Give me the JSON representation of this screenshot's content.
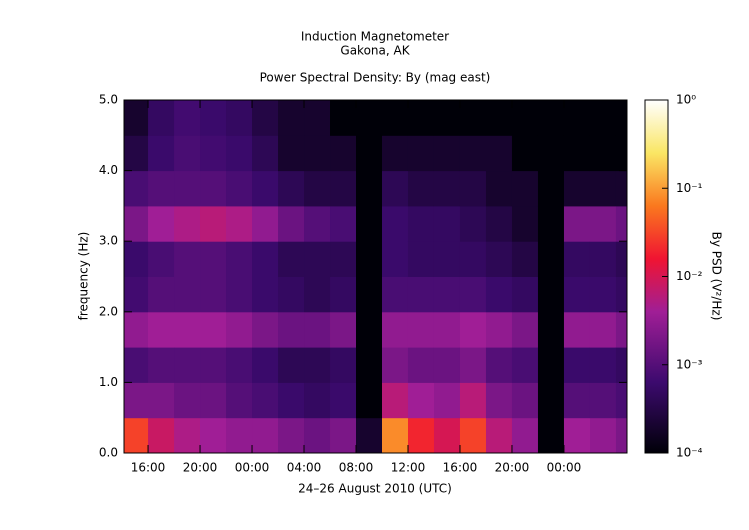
{
  "chart_data": {
    "type": "heatmap",
    "title": "Induction Magnetometer",
    "subtitle": "Gakona, AK",
    "plot_title": "Power Spectral Density: By (mag east)",
    "xlabel": "24–26 August 2010 (UTC)",
    "ylabel": "frequency (Hz)",
    "colorbar_label": "By PSD (V²/Hz)",
    "xlim": [
      14.15,
      52.85
    ],
    "xticks": [
      {
        "value": 16,
        "label": "16:00"
      },
      {
        "value": 20,
        "label": "20:00"
      },
      {
        "value": 24,
        "label": "00:00"
      },
      {
        "value": 28,
        "label": "04:00"
      },
      {
        "value": 32,
        "label": "08:00"
      },
      {
        "value": 36,
        "label": "12:00"
      },
      {
        "value": 40,
        "label": "16:00"
      },
      {
        "value": 44,
        "label": "20:00"
      },
      {
        "value": 48,
        "label": "00:00"
      }
    ],
    "ylim": [
      0,
      5
    ],
    "yticks": [
      {
        "value": 0,
        "label": "0.0"
      },
      {
        "value": 1,
        "label": "1.0"
      },
      {
        "value": 2,
        "label": "2.0"
      },
      {
        "value": 3,
        "label": "3.0"
      },
      {
        "value": 4,
        "label": "4.0"
      },
      {
        "value": 5,
        "label": "5.0"
      }
    ],
    "zlim": [
      0.0001,
      1
    ],
    "zscale": "log",
    "zticks": [
      {
        "value": 1,
        "label": "10⁰"
      },
      {
        "value": 0.1,
        "label": "10⁻¹"
      },
      {
        "value": 0.01,
        "label": "10⁻²"
      },
      {
        "value": 0.001,
        "label": "10⁻³"
      },
      {
        "value": 0.0001,
        "label": "10⁻⁴"
      }
    ],
    "x": [
      15,
      17,
      19,
      21,
      23,
      25,
      27,
      29,
      31,
      33,
      35,
      37,
      39,
      41,
      43,
      45,
      47,
      49,
      51,
      53
    ],
    "y": [
      0.25,
      0.75,
      1.25,
      1.75,
      2.25,
      2.75,
      3.25,
      3.75,
      4.25,
      4.75
    ],
    "z": [
      [
        0.03,
        0.002,
        0.0008,
        0.003,
        0.0007,
        0.0006,
        0.002,
        0.0008,
        0.0003,
        0.0002
      ],
      [
        0.008,
        0.002,
        0.001,
        0.004,
        0.001,
        0.0008,
        0.004,
        0.001,
        0.0006,
        0.0005
      ],
      [
        0.005,
        0.0015,
        0.001,
        0.004,
        0.001,
        0.001,
        0.005,
        0.001,
        0.0008,
        0.0007
      ],
      [
        0.004,
        0.0015,
        0.001,
        0.004,
        0.001,
        0.001,
        0.006,
        0.001,
        0.0007,
        0.0006
      ],
      [
        0.003,
        0.001,
        0.0008,
        0.003,
        0.0008,
        0.0008,
        0.005,
        0.0008,
        0.0006,
        0.0005
      ],
      [
        0.003,
        0.0008,
        0.0006,
        0.002,
        0.0006,
        0.0006,
        0.003,
        0.0006,
        0.0004,
        0.0003
      ],
      [
        0.002,
        0.0006,
        0.0004,
        0.0015,
        0.0005,
        0.0004,
        0.0015,
        0.0004,
        0.0002,
        0.0002
      ],
      [
        0.0015,
        0.0005,
        0.0004,
        0.0015,
        0.0004,
        0.0004,
        0.001,
        0.0003,
        0.0002,
        0.0002
      ],
      [
        0.002,
        0.0006,
        0.0005,
        0.002,
        0.0005,
        0.0004,
        0.0008,
        0.0003,
        0.0002,
        0.0001
      ],
      [
        0.0002,
        0.0001,
        0.0001,
        0.0001,
        0.0001,
        0.0001,
        0.0001,
        0.0001,
        0.0001,
        0.0001
      ],
      [
        0.08,
        0.006,
        0.002,
        0.003,
        0.0008,
        0.0006,
        0.0006,
        0.0004,
        0.0002,
        0.0001
      ],
      [
        0.02,
        0.004,
        0.0015,
        0.003,
        0.0008,
        0.0005,
        0.0005,
        0.0003,
        0.0002,
        0.0001
      ],
      [
        0.01,
        0.003,
        0.0015,
        0.003,
        0.0008,
        0.0005,
        0.0005,
        0.0003,
        0.0002,
        0.0001
      ],
      [
        0.03,
        0.006,
        0.002,
        0.004,
        0.0008,
        0.0005,
        0.0004,
        0.0003,
        0.0002,
        0.0001
      ],
      [
        0.006,
        0.002,
        0.001,
        0.003,
        0.0006,
        0.0004,
        0.0003,
        0.0002,
        0.0002,
        0.0001
      ],
      [
        0.003,
        0.0015,
        0.0008,
        0.002,
        0.0005,
        0.0003,
        0.0002,
        0.0002,
        0.0001,
        0.0001
      ],
      [
        0.0001,
        0.0001,
        0.0001,
        0.0001,
        0.0001,
        0.0001,
        0.0001,
        0.0001,
        0.0001,
        0.0001
      ],
      [
        0.004,
        0.001,
        0.0006,
        0.003,
        0.0006,
        0.0005,
        0.002,
        0.0002,
        0.0001,
        0.0001
      ],
      [
        0.003,
        0.001,
        0.0006,
        0.003,
        0.0006,
        0.0005,
        0.002,
        0.0002,
        0.0001,
        0.0001
      ],
      [
        0.002,
        0.0008,
        0.0005,
        0.002,
        0.0005,
        0.0004,
        0.0015,
        0.0002,
        0.0001,
        0.0001
      ]
    ]
  }
}
